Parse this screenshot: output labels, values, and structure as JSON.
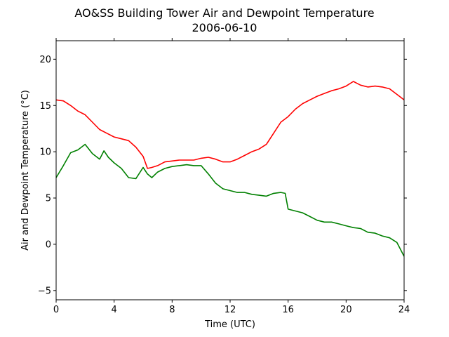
{
  "chart_data": {
    "type": "line",
    "title": "AO&SS Building Tower Air and Dewpoint Temperature",
    "subtitle": "2006-06-10",
    "xlabel": "Time (UTC)",
    "ylabel": "Air and Dewpoint Temperature (°C)",
    "xlim": [
      0,
      24
    ],
    "ylim": [
      -6,
      22
    ],
    "xticks": [
      0,
      4,
      8,
      12,
      16,
      20,
      24
    ],
    "yticks": [
      -5,
      0,
      5,
      10,
      15,
      20
    ],
    "grid": false,
    "legend": "none",
    "series": [
      {
        "color": "#ff0000",
        "x": [
          0,
          0.5,
          1,
          1.5,
          2,
          2.5,
          3,
          3.5,
          4,
          4.5,
          5,
          5.5,
          6,
          6.3,
          6.6,
          7,
          7.5,
          8,
          8.5,
          9,
          9.5,
          10,
          10.5,
          11,
          11.5,
          12,
          12.5,
          13,
          13.5,
          14,
          14.5,
          15,
          15.5,
          16,
          16.5,
          17,
          17.5,
          18,
          18.5,
          19,
          19.5,
          20,
          20.5,
          21,
          21.5,
          22,
          22.5,
          23,
          23.5,
          24
        ],
        "y": [
          15.6,
          15.5,
          15.0,
          14.4,
          14.0,
          13.2,
          12.4,
          12.0,
          11.6,
          11.4,
          11.2,
          10.5,
          9.5,
          8.2,
          8.3,
          8.5,
          8.9,
          9.0,
          9.1,
          9.1,
          9.1,
          9.3,
          9.4,
          9.2,
          8.9,
          8.9,
          9.2,
          9.6,
          10.0,
          10.3,
          10.8,
          12.0,
          13.2,
          13.8,
          14.6,
          15.2,
          15.6,
          16.0,
          16.3,
          16.6,
          16.8,
          17.1,
          17.6,
          17.2,
          17.0,
          17.1,
          17.0,
          16.8,
          16.2,
          15.6
        ]
      },
      {
        "color": "#008000",
        "x": [
          0,
          0.5,
          1,
          1.5,
          2,
          2.5,
          3,
          3.3,
          3.6,
          4,
          4.5,
          5,
          5.5,
          6,
          6.3,
          6.6,
          7,
          7.5,
          8,
          8.5,
          9,
          9.5,
          10,
          10.5,
          11,
          11.5,
          12,
          12.5,
          13,
          13.5,
          14,
          14.5,
          15,
          15.5,
          15.8,
          16,
          16.5,
          17,
          17.5,
          18,
          18.5,
          19,
          19.5,
          20,
          20.5,
          21,
          21.5,
          22,
          22.5,
          23,
          23.5,
          24
        ],
        "y": [
          7.2,
          8.5,
          9.9,
          10.2,
          10.8,
          9.8,
          9.2,
          10.1,
          9.4,
          8.8,
          8.2,
          7.2,
          7.1,
          8.3,
          7.6,
          7.2,
          7.8,
          8.2,
          8.4,
          8.5,
          8.6,
          8.5,
          8.5,
          7.6,
          6.6,
          6.0,
          5.8,
          5.6,
          5.6,
          5.4,
          5.3,
          5.2,
          5.5,
          5.6,
          5.5,
          3.8,
          3.6,
          3.4,
          3.0,
          2.6,
          2.4,
          2.4,
          2.2,
          2.0,
          1.8,
          1.7,
          1.3,
          1.2,
          0.9,
          0.7,
          0.2,
          -1.3
        ]
      }
    ]
  }
}
